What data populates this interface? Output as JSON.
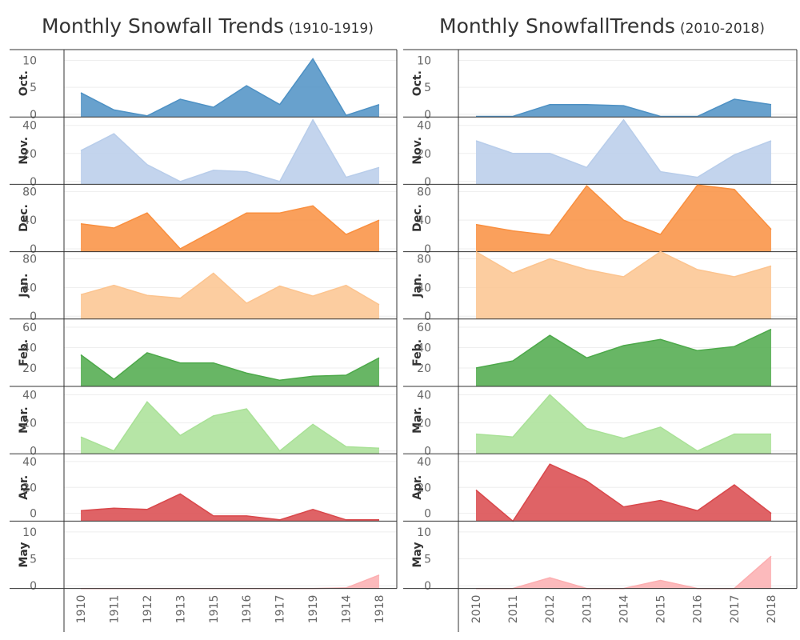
{
  "panels": [
    {
      "title": "Monthly Snowfall Trends",
      "subtitle": "(1910-1919)",
      "x_labels": [
        "1910",
        "1911",
        "1912",
        "1913",
        "1915",
        "1916",
        "1917",
        "1919",
        "1914",
        "1918"
      ]
    },
    {
      "title": "Monthly SnowfallTrends",
      "subtitle": "(2010-2018)",
      "x_labels": [
        "2010",
        "2011",
        "2012",
        "2013",
        "2014",
        "2015",
        "2016",
        "2017",
        "2018"
      ]
    }
  ],
  "chart_data": [
    {
      "type": "area",
      "title": "Monthly Snowfall Trends (1910-1919)",
      "x": [
        "1910",
        "1911",
        "1912",
        "1913",
        "1915",
        "1916",
        "1917",
        "1919",
        "1914",
        "1918"
      ],
      "series": [
        {
          "name": "Oct.",
          "color": "#4e91c4",
          "ylim": [
            -0.5,
            12
          ],
          "yticks": [
            0,
            5,
            10
          ],
          "values": [
            4,
            0.8,
            -0.3,
            2.8,
            1.3,
            5.3,
            1.8,
            10.3,
            -0.2,
            1.8
          ]
        },
        {
          "name": "Nov.",
          "color": "#b8cdea",
          "ylim": [
            -2,
            46
          ],
          "yticks": [
            0,
            20,
            40
          ],
          "values": [
            22,
            34,
            12,
            0,
            8,
            7,
            0,
            44,
            3,
            10
          ]
        },
        {
          "name": "Dec.",
          "color": "#f98f3f",
          "ylim": [
            -4,
            90
          ],
          "yticks": [
            0,
            40,
            80
          ],
          "values": [
            35,
            29,
            50,
            0,
            25,
            50,
            50,
            60,
            20,
            40
          ]
        },
        {
          "name": "Jan.",
          "color": "#fcc48f",
          "ylim": [
            -4,
            90
          ],
          "yticks": [
            0,
            40,
            80
          ],
          "values": [
            30,
            43,
            29,
            25,
            60,
            18,
            42,
            28,
            43,
            16
          ]
        },
        {
          "name": "Feb.",
          "color": "#4da94a",
          "ylim": [
            2,
            68
          ],
          "yticks": [
            20,
            40,
            60
          ],
          "values": [
            33,
            9,
            35,
            25,
            25,
            15,
            8,
            12,
            13,
            30
          ]
        },
        {
          "name": "Mar.",
          "color": "#a9e197",
          "ylim": [
            -2,
            46
          ],
          "yticks": [
            0,
            20,
            40
          ],
          "values": [
            10,
            0,
            35,
            11,
            25,
            30,
            0,
            19,
            3,
            2
          ]
        },
        {
          "name": "Apr.",
          "color": "#d9484b",
          "ylim": [
            -6,
            46
          ],
          "yticks": [
            0,
            20,
            40
          ],
          "values": [
            2,
            4,
            3,
            15,
            -2,
            -2,
            -5,
            3,
            -5,
            -5
          ]
        },
        {
          "name": "May",
          "color": "#fcaeb0",
          "ylim": [
            -0.5,
            12
          ],
          "yticks": [
            0,
            5,
            10
          ],
          "values": [
            -0.6,
            -0.6,
            -0.6,
            -0.6,
            -0.6,
            -0.6,
            -0.6,
            -0.6,
            -0.4,
            2
          ]
        }
      ]
    },
    {
      "type": "area",
      "title": "Monthly SnowfallTrends (2010-2018)",
      "x": [
        "2010",
        "2011",
        "2012",
        "2013",
        "2014",
        "2015",
        "2016",
        "2017",
        "2018"
      ],
      "series": [
        {
          "name": "Oct.",
          "color": "#4e91c4",
          "ylim": [
            -0.5,
            12
          ],
          "yticks": [
            0,
            5,
            10
          ],
          "values": [
            -0.4,
            -0.4,
            1.8,
            1.8,
            1.6,
            -0.4,
            -0.4,
            2.8,
            1.8
          ]
        },
        {
          "name": "Nov.",
          "color": "#b8cdea",
          "ylim": [
            -2,
            46
          ],
          "yticks": [
            0,
            20,
            40
          ],
          "values": [
            29,
            20,
            20,
            10,
            44,
            7,
            3,
            19,
            29
          ]
        },
        {
          "name": "Dec.",
          "color": "#f98f3f",
          "ylim": [
            -4,
            90
          ],
          "yticks": [
            0,
            40,
            80
          ],
          "values": [
            34,
            25,
            19,
            88,
            40,
            20,
            89,
            83,
            27
          ]
        },
        {
          "name": "Jan.",
          "color": "#fcc48f",
          "ylim": [
            -4,
            90
          ],
          "yticks": [
            0,
            40,
            80
          ],
          "values": [
            90,
            60,
            80,
            65,
            55,
            90,
            65,
            55,
            70
          ]
        },
        {
          "name": "Feb.",
          "color": "#4da94a",
          "ylim": [
            2,
            68
          ],
          "yticks": [
            20,
            40,
            60
          ],
          "values": [
            20,
            27,
            52,
            30,
            42,
            48,
            37,
            41,
            58
          ]
        },
        {
          "name": "Mar.",
          "color": "#a9e197",
          "ylim": [
            -2,
            46
          ],
          "yticks": [
            0,
            20,
            40
          ],
          "values": [
            12,
            10,
            40,
            16,
            9,
            17,
            0,
            12,
            12
          ]
        },
        {
          "name": "Apr.",
          "color": "#d9484b",
          "ylim": [
            -6,
            46
          ],
          "yticks": [
            0,
            20,
            40
          ],
          "values": [
            18,
            -6,
            38,
            25,
            5,
            10,
            2,
            22,
            0
          ]
        },
        {
          "name": "May",
          "color": "#fcaeb0",
          "ylim": [
            -0.5,
            12
          ],
          "yticks": [
            0,
            5,
            10
          ],
          "values": [
            -0.6,
            -0.6,
            1.5,
            -0.6,
            -0.6,
            1,
            -0.6,
            -0.6,
            5.5
          ]
        }
      ]
    }
  ]
}
